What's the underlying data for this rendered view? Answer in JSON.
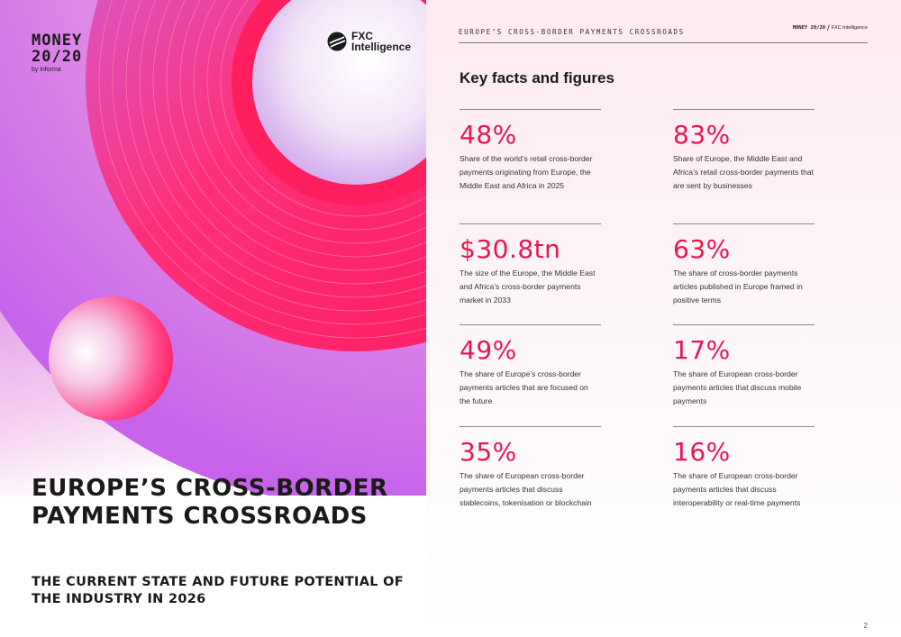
{
  "cover": {
    "logo_money_line1": "MONEY",
    "logo_money_line2": "20/20",
    "logo_money_by": "by informa",
    "logo_fxc_line1": "FXC",
    "logo_fxc_line2": "Intelligence",
    "title": "EUROPE’S CROSS-BORDER PAYMENTS CROSSROADS",
    "subtitle": "THE CURRENT STATE AND FUTURE POTENTIAL OF THE INDUSTRY IN 2026"
  },
  "header": {
    "title": "EUROPE’S CROSS-BORDER PAYMENTS CROSSROADS",
    "logo_money": "MONEY 20/20",
    "logo_fxc": "FXC Intelligence"
  },
  "section_title": "Key facts and figures",
  "facts": [
    {
      "value": "48%",
      "desc": "Share of the world’s retail cross-border payments originating from Europe, the Middle East and Africa in 2025"
    },
    {
      "value": "83%",
      "desc": "Share of Europe, the Middle East and Africa’s retail cross-border payments that are sent by businesses"
    },
    {
      "value": "$30.8tn",
      "desc": "The size of the Europe, the Middle East and Africa’s cross-border payments market in 2033"
    },
    {
      "value": "63%",
      "desc": "The share of cross-border payments articles published in Europe framed in positive terms"
    },
    {
      "value": "49%",
      "desc": "The share of Europe’s cross-border payments articles that are focused on the future"
    },
    {
      "value": "17%",
      "desc": "The share of European cross-border payments articles that discuss mobile payments"
    },
    {
      "value": "35%",
      "desc": "The share of European cross-border payments articles that discuss stablecoins, tokenisation or blockchain"
    },
    {
      "value": "16%",
      "desc": "The share of European cross-border payments articles that discuss interoperability or real-time payments"
    }
  ],
  "page_number": "2",
  "colors": {
    "accent": "#e8174d",
    "magenta": "#ff1f6b",
    "violet": "#c86af0",
    "pink_light": "#f6b6da"
  }
}
